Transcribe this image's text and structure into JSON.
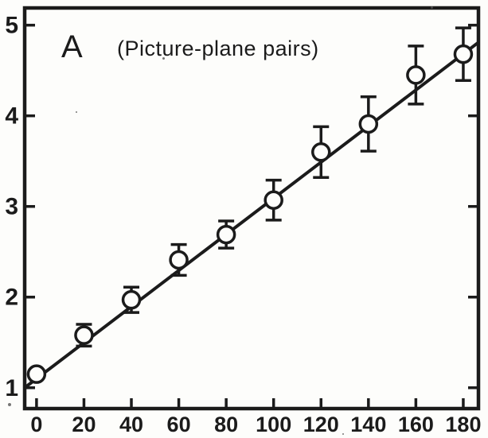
{
  "figure": {
    "background": "#fdfdfb",
    "ink_color": "#1b1b1b"
  },
  "chart_data": {
    "type": "scatter",
    "panel_label": "A",
    "title": "(Picture-plane pairs)",
    "xlabel": "",
    "ylabel": "",
    "xlim": [
      -5,
      186.4
    ],
    "ylim": [
      0.77,
      5.19
    ],
    "x_ticks": [
      0,
      20,
      40,
      60,
      80,
      100,
      120,
      140,
      160,
      180
    ],
    "y_ticks": [
      1,
      2,
      3,
      4,
      5
    ],
    "grid": false,
    "legend": "none",
    "marker": "open-circle",
    "error_bars": "vertical-with-caps",
    "points": [
      {
        "x": 0,
        "y": 1.15,
        "err": 0
      },
      {
        "x": 20,
        "y": 1.58,
        "err": 0.12
      },
      {
        "x": 40,
        "y": 1.97,
        "err": 0.14
      },
      {
        "x": 60,
        "y": 2.41,
        "err": 0.17
      },
      {
        "x": 80,
        "y": 2.69,
        "err": 0.15
      },
      {
        "x": 100,
        "y": 3.07,
        "err": 0.22
      },
      {
        "x": 120,
        "y": 3.6,
        "err": 0.28
      },
      {
        "x": 140,
        "y": 3.91,
        "err": 0.3
      },
      {
        "x": 160,
        "y": 4.45,
        "err": 0.32
      },
      {
        "x": 180,
        "y": 4.68,
        "err": 0.29
      }
    ],
    "fit_line": {
      "x": [
        -5,
        186.4
      ],
      "y": [
        1.0,
        4.81
      ]
    }
  }
}
